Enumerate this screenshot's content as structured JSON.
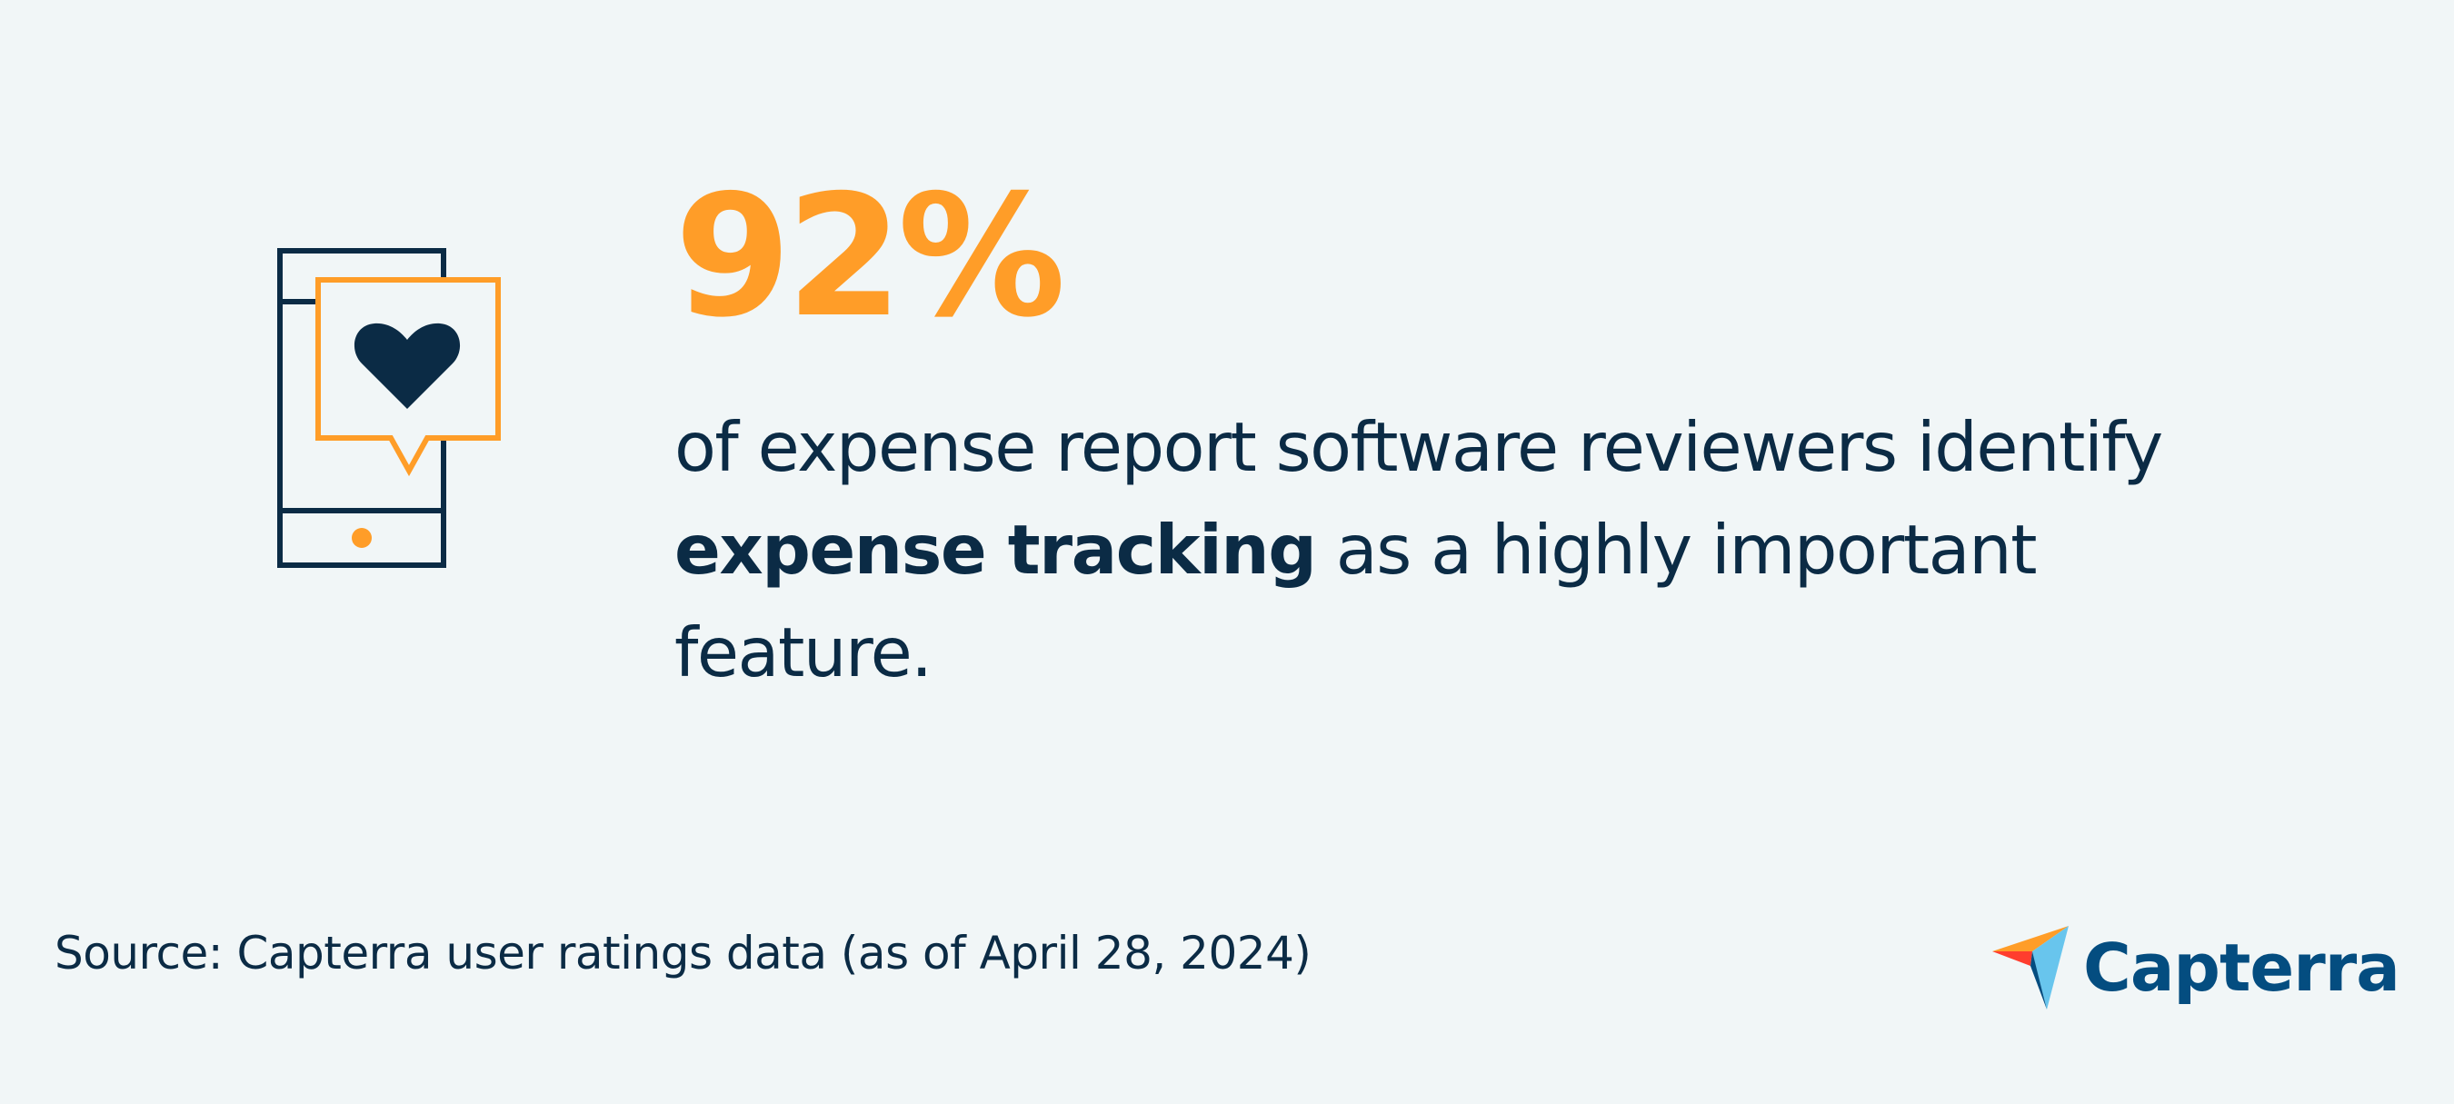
{
  "headline": {
    "percent": "92%",
    "text_before": "of expense report software reviewers identify ",
    "text_bold": "expense tracking",
    "text_after": " as a highly important feature."
  },
  "footer": {
    "source": "Source: Capterra user ratings data (as of April 28, 2024)",
    "logo_text": "Capterra"
  },
  "icons": {
    "illustration": "phone-with-heart-speech-bubble-icon",
    "logo_mark": "capterra-arrow-logo-icon"
  },
  "colors": {
    "background": "#f1f6f7",
    "accent_orange": "#ff9d28",
    "navy": "#0b2b45",
    "logo_blue": "#044d80"
  }
}
